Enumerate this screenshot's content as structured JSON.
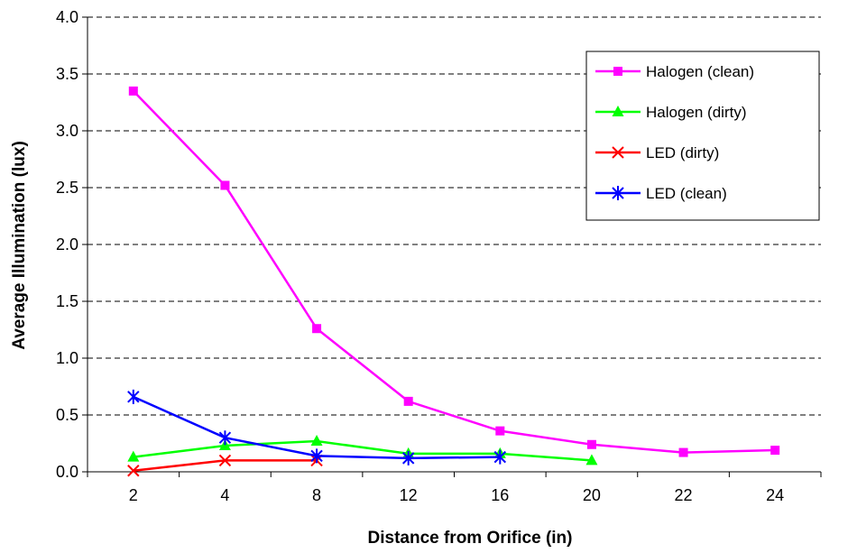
{
  "chart_data": {
    "type": "line",
    "title": "",
    "xlabel": "Distance from Orifice (in)",
    "ylabel": "Average Illumination (lux)",
    "categories": [
      "2",
      "4",
      "8",
      "12",
      "16",
      "20",
      "22",
      "24"
    ],
    "ylim": [
      0,
      4.0
    ],
    "yticks": [
      "0.0",
      "0.5",
      "1.0",
      "1.5",
      "2.0",
      "2.5",
      "3.0",
      "3.5",
      "4.0"
    ],
    "grid": "horizontal-dashed",
    "legend_position": "top-right",
    "series": [
      {
        "name": "Halogen (clean)",
        "color": "#ff00ff",
        "marker": "square",
        "values": [
          3.35,
          2.52,
          1.26,
          0.62,
          0.36,
          0.24,
          0.17,
          0.19
        ]
      },
      {
        "name": "Halogen (dirty)",
        "color": "#00ff00",
        "marker": "triangle",
        "values": [
          0.13,
          0.23,
          0.27,
          0.16,
          0.16,
          0.1,
          null,
          null
        ]
      },
      {
        "name": "LED (dirty)",
        "color": "#ff0000",
        "marker": "x",
        "values": [
          0.01,
          0.1,
          0.1,
          null,
          null,
          null,
          null,
          null
        ]
      },
      {
        "name": "LED (clean)",
        "color": "#0000ff",
        "marker": "star",
        "values": [
          0.66,
          0.3,
          0.14,
          0.12,
          0.13,
          null,
          null,
          null
        ]
      }
    ]
  }
}
